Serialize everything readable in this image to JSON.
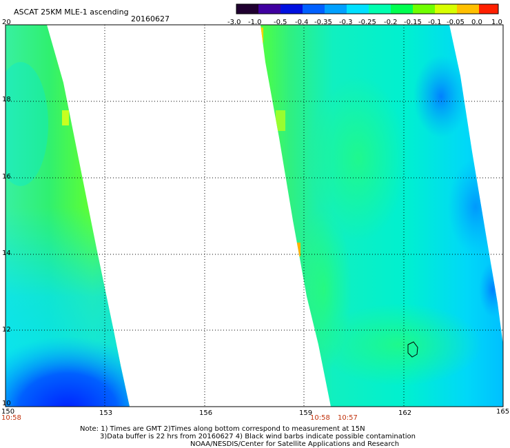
{
  "header": {
    "title": "ASCAT 25KM MLE-1 ascending",
    "date": "20160627"
  },
  "colorbar": {
    "labels": [
      "-3.0",
      "-1.0",
      "-0.5",
      "-0.4",
      "-0.35",
      "-0.3",
      "-0.25",
      "-0.2",
      "-0.15",
      "-0.1",
      "-0.05",
      "0.0",
      "1.0"
    ],
    "colors": [
      "#1a0020",
      "#3a0080",
      "#0010e0",
      "#0058ff",
      "#0098ff",
      "#00d8ff",
      "#00ffc0",
      "#00ff60",
      "#60ff00",
      "#c0ff00",
      "#ffd000",
      "#ff6000",
      "#ff1010"
    ]
  },
  "axes": {
    "lon_ticks": [
      "150",
      "153",
      "156",
      "159",
      "162",
      "165"
    ],
    "lat_ticks": [
      "20",
      "18",
      "16",
      "14",
      "12",
      "10"
    ]
  },
  "times": [
    "10:58",
    "10:58",
    "10:57"
  ],
  "notes": [
    "Note: 1) Times are GMT 2)Times along bottom correspond to measurement at 15N",
    "3)Data buffer is 22 hrs from 20160627 4) Black wind barbs indicate possible contamination",
    "NOAA/NESDIS/Center for Satellite Applications and Research"
  ]
}
